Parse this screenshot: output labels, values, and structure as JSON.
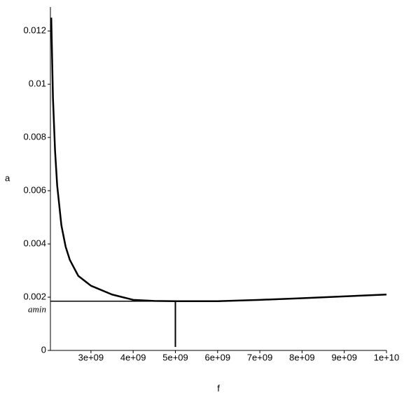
{
  "chart_data": {
    "type": "line",
    "x_label": "f",
    "y_label": "a",
    "x": [
      2060000000.0,
      2100000000.0,
      2150000000.0,
      2200000000.0,
      2300000000.0,
      2400000000.0,
      2500000000.0,
      2700000000.0,
      3000000000.0,
      3500000000.0,
      4000000000.0,
      4500000000.0,
      5000000000.0,
      6000000000.0,
      7000000000.0,
      8000000000.0,
      9000000000.0,
      10000000000.0
    ],
    "series": [
      {
        "color": "#000000",
        "values": [
          0.0125,
          0.0095,
          0.0075,
          0.0062,
          0.0047,
          0.0039,
          0.0034,
          0.0028,
          0.00243,
          0.0021,
          0.0019,
          0.00186,
          0.00185,
          0.00185,
          0.0019,
          0.00196,
          0.00203,
          0.0021
        ]
      }
    ],
    "amin": {
      "label": "amin",
      "x": 5000000000.0,
      "y": 0.00185
    },
    "xlim": [
      2040000000.0,
      10000000000.0
    ],
    "ylim": [
      0,
      0.0129
    ],
    "xticks": [
      {
        "value": 3000000000.0,
        "label": "3e+09"
      },
      {
        "value": 4000000000.0,
        "label": "4e+09"
      },
      {
        "value": 5000000000.0,
        "label": "5e+09"
      },
      {
        "value": 6000000000.0,
        "label": "6e+09"
      },
      {
        "value": 7000000000.0,
        "label": "7e+09"
      },
      {
        "value": 8000000000.0,
        "label": "8e+09"
      },
      {
        "value": 9000000000.0,
        "label": "9e+09"
      },
      {
        "value": 10000000000.0,
        "label": "1e+10"
      }
    ],
    "yticks": [
      0,
      0.002,
      0.004,
      0.006,
      0.008,
      0.01,
      0.012
    ]
  }
}
